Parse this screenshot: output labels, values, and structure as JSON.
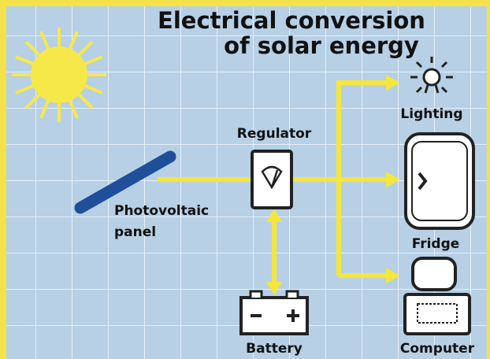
{
  "title": {
    "line1": "Electrical conversion",
    "line2": "of solar energy"
  },
  "nodes": [
    {
      "label": "Regulator"
    },
    {
      "label": {
        "line1": "Photovoltaic",
        "line2": "panel"
      }
    },
    {
      "label": "Lighting"
    },
    {
      "label": "Fridge"
    },
    {
      "label": "Battery"
    },
    {
      "label": "Computer"
    }
  ]
}
